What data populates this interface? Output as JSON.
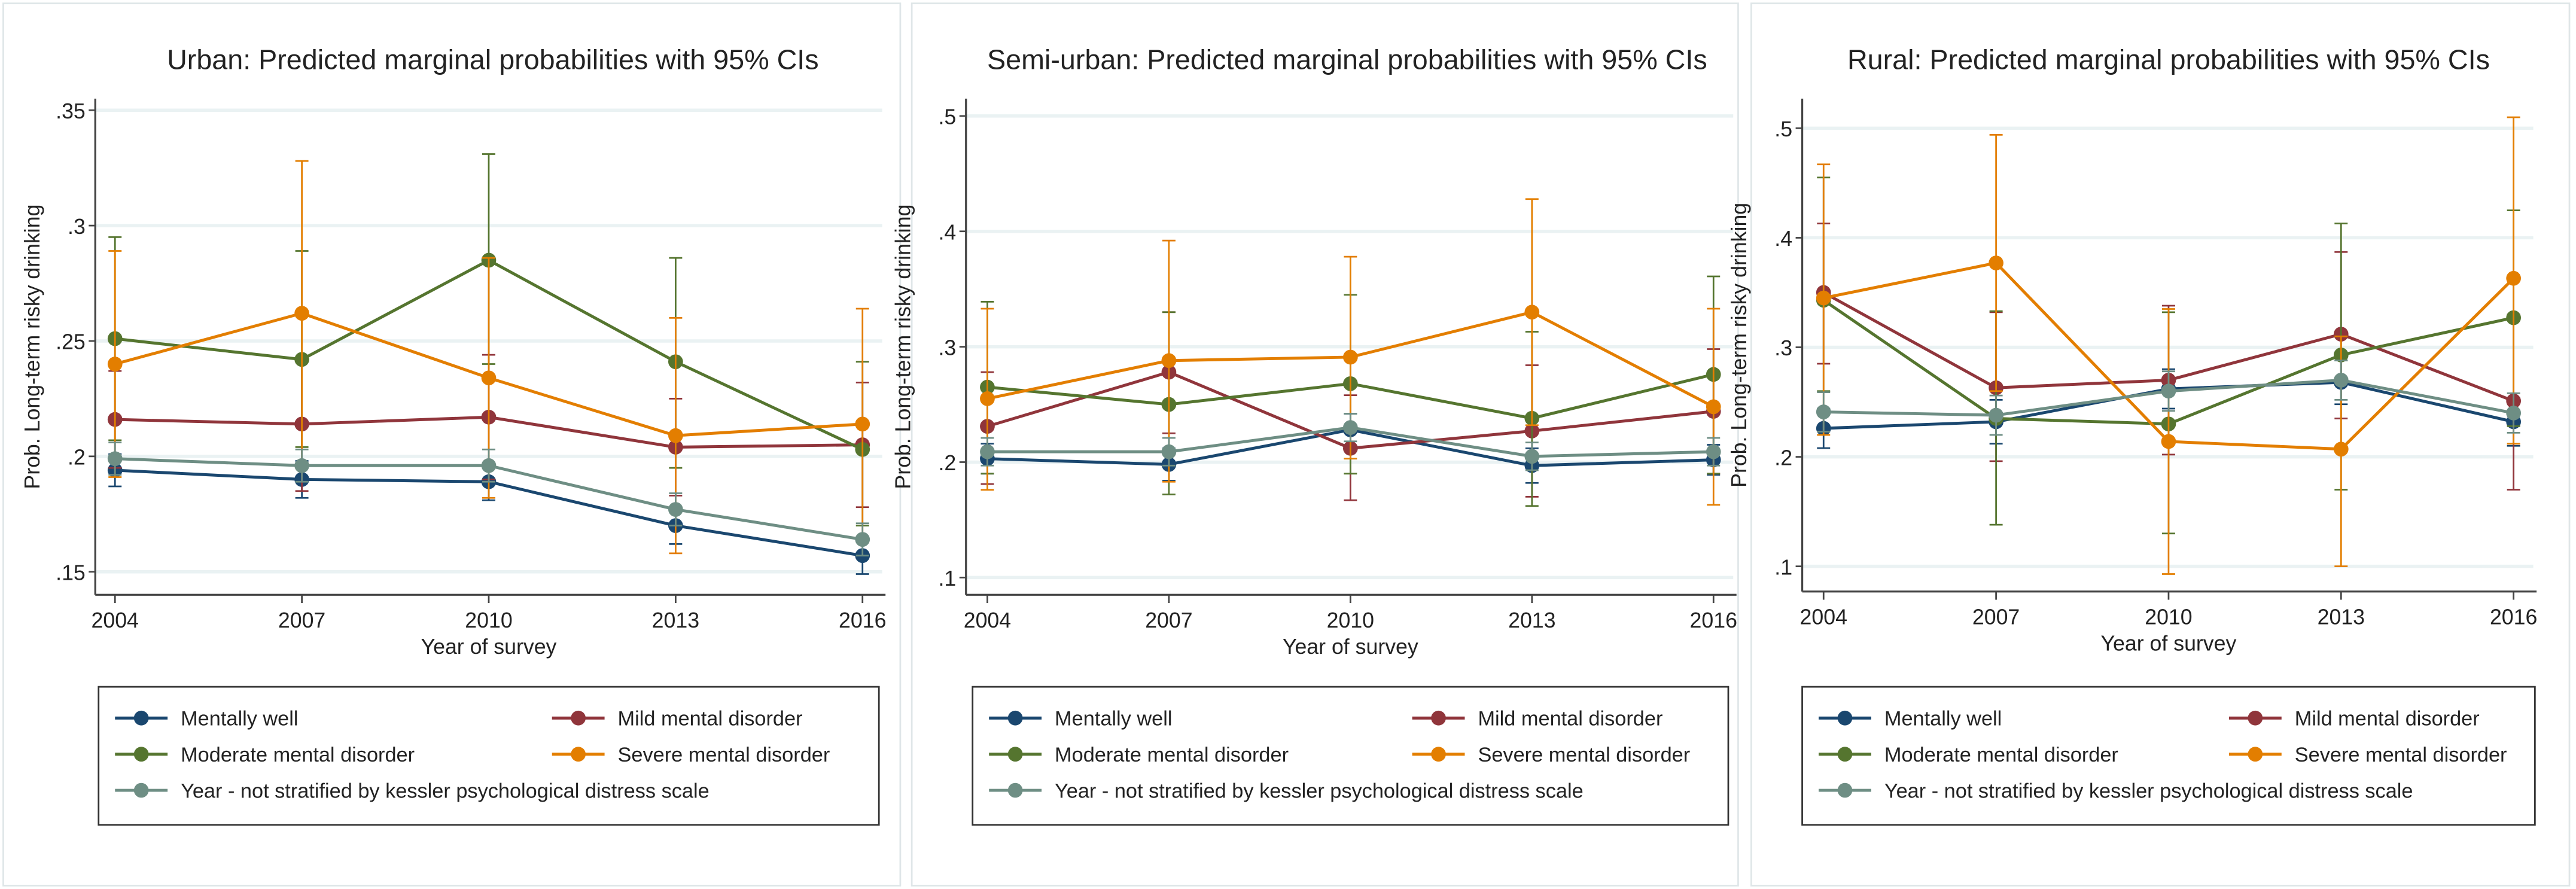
{
  "colors": {
    "well": "#1a476f",
    "mild": "#90353b",
    "moderate": "#55752f",
    "severe": "#e37e00",
    "ns": "#6e8e84",
    "grid": "#eaf2f3",
    "axis": "#444"
  },
  "legend": [
    {
      "key": "well",
      "label": "Mentally well"
    },
    {
      "key": "mild",
      "label": "Mild mental disorder"
    },
    {
      "key": "moderate",
      "label": "Moderate mental disorder"
    },
    {
      "key": "severe",
      "label": "Severe mental disorder"
    },
    {
      "key": "ns",
      "label": "Year - not stratified by kessler psychological distress scale"
    }
  ],
  "chart_data": [
    {
      "type": "line",
      "title": "Urban: Predicted marginal probabilities with 95% CIs",
      "xlabel": "Year of survey",
      "ylabel": "Prob. Long-term risky drinking",
      "x": [
        2004,
        2007,
        2010,
        2013,
        2016
      ],
      "x_ticks": [
        "2004",
        "2007",
        "2010",
        "2013",
        "2016"
      ],
      "y_ticks": [
        {
          "v": 0.15,
          "label": ".15"
        },
        {
          "v": 0.2,
          "label": ".2"
        },
        {
          "v": 0.25,
          "label": ".25"
        },
        {
          "v": 0.3,
          "label": ".3"
        },
        {
          "v": 0.35,
          "label": ".35"
        }
      ],
      "ylim": [
        0.14,
        0.355
      ],
      "grid": true,
      "legend_position": "bottom",
      "series": [
        {
          "key": "well",
          "name": "Mentally well",
          "values": [
            0.194,
            0.19,
            0.189,
            0.17,
            0.157
          ],
          "ci_low": [
            0.187,
            0.182,
            0.181,
            0.162,
            0.149
          ],
          "ci_high": [
            0.201,
            0.198,
            0.197,
            0.178,
            0.165
          ]
        },
        {
          "key": "mild",
          "name": "Mild mental disorder",
          "values": [
            0.216,
            0.214,
            0.217,
            0.204,
            0.205
          ],
          "ci_low": [
            0.195,
            0.185,
            0.19,
            0.183,
            0.178
          ],
          "ci_high": [
            0.237,
            0.243,
            0.244,
            0.225,
            0.232
          ]
        },
        {
          "key": "moderate",
          "name": "Moderate mental disorder",
          "values": [
            0.251,
            0.242,
            0.285,
            0.241,
            0.203
          ],
          "ci_low": [
            0.207,
            0.204,
            0.24,
            0.195,
            0.17
          ],
          "ci_high": [
            0.295,
            0.289,
            0.331,
            0.286,
            0.241
          ]
        },
        {
          "key": "severe",
          "name": "Severe mental disorder",
          "values": [
            0.24,
            0.262,
            0.234,
            0.209,
            0.214
          ],
          "ci_low": [
            0.191,
            0.196,
            0.182,
            0.158,
            0.165
          ],
          "ci_high": [
            0.289,
            0.328,
            0.286,
            0.26,
            0.264
          ]
        },
        {
          "key": "ns",
          "name": "Year - not stratified by kessler psychological distress scale",
          "values": [
            0.199,
            0.196,
            0.196,
            0.177,
            0.164
          ],
          "ci_low": [
            0.192,
            0.189,
            0.189,
            0.17,
            0.157
          ],
          "ci_high": [
            0.206,
            0.203,
            0.203,
            0.184,
            0.171
          ]
        }
      ]
    },
    {
      "type": "line",
      "title": "Semi-urban: Predicted marginal probabilities with 95% CIs",
      "xlabel": "Year of survey",
      "ylabel": "Prob. Long-term risky drinking",
      "x": [
        2004,
        2007,
        2010,
        2013,
        2016
      ],
      "x_ticks": [
        "2004",
        "2007",
        "2010",
        "2013",
        "2016"
      ],
      "y_ticks": [
        {
          "v": 0.1,
          "label": ".1"
        },
        {
          "v": 0.2,
          "label": ".2"
        },
        {
          "v": 0.3,
          "label": ".3"
        },
        {
          "v": 0.4,
          "label": ".4"
        },
        {
          "v": 0.5,
          "label": ".5"
        }
      ],
      "ylim": [
        0.085,
        0.515
      ],
      "grid": true,
      "legend_position": "bottom",
      "series": [
        {
          "key": "well",
          "name": "Mentally well",
          "values": [
            0.203,
            0.198,
            0.228,
            0.197,
            0.202
          ],
          "ci_low": [
            0.19,
            0.184,
            0.214,
            0.182,
            0.189
          ],
          "ci_high": [
            0.216,
            0.212,
            0.242,
            0.212,
            0.215
          ]
        },
        {
          "key": "mild",
          "name": "Mild mental disorder",
          "values": [
            0.231,
            0.278,
            0.212,
            0.227,
            0.244
          ],
          "ci_low": [
            0.181,
            0.225,
            0.167,
            0.17,
            0.19
          ],
          "ci_high": [
            0.278,
            0.33,
            0.258,
            0.284,
            0.298
          ]
        },
        {
          "key": "moderate",
          "name": "Moderate mental disorder",
          "values": [
            0.265,
            0.25,
            0.268,
            0.238,
            0.276
          ],
          "ci_low": [
            0.19,
            0.172,
            0.19,
            0.162,
            0.19
          ],
          "ci_high": [
            0.339,
            0.33,
            0.345,
            0.313,
            0.361
          ]
        },
        {
          "key": "severe",
          "name": "Severe mental disorder",
          "values": [
            0.255,
            0.288,
            0.291,
            0.33,
            0.248
          ],
          "ci_low": [
            0.176,
            0.183,
            0.203,
            0.232,
            0.163
          ],
          "ci_high": [
            0.333,
            0.392,
            0.378,
            0.428,
            0.333
          ]
        },
        {
          "key": "ns",
          "name": "Year - not stratified by kessler psychological distress scale",
          "values": [
            0.209,
            0.209,
            0.23,
            0.205,
            0.209
          ],
          "ci_low": [
            0.197,
            0.197,
            0.218,
            0.193,
            0.197
          ],
          "ci_high": [
            0.221,
            0.221,
            0.242,
            0.217,
            0.221
          ]
        }
      ]
    },
    {
      "type": "line",
      "title": "Rural: Predicted marginal probabilities with 95% CIs",
      "xlabel": "Year of survey",
      "ylabel": "Prob. Long-term risky drinking",
      "x": [
        2004,
        2007,
        2010,
        2013,
        2016
      ],
      "x_ticks": [
        "2004",
        "2007",
        "2010",
        "2013",
        "2016"
      ],
      "y_ticks": [
        {
          "v": 0.1,
          "label": ".1"
        },
        {
          "v": 0.2,
          "label": ".2"
        },
        {
          "v": 0.3,
          "label": ".3"
        },
        {
          "v": 0.4,
          "label": ".4"
        },
        {
          "v": 0.5,
          "label": ".5"
        }
      ],
      "ylim": [
        0.077,
        0.527
      ],
      "grid": true,
      "legend_position": "bottom",
      "series": [
        {
          "key": "well",
          "name": "Mentally well",
          "values": [
            0.226,
            0.232,
            0.262,
            0.268,
            0.232
          ],
          "ci_low": [
            0.208,
            0.212,
            0.244,
            0.248,
            0.21
          ],
          "ci_high": [
            0.244,
            0.252,
            0.28,
            0.288,
            0.254
          ]
        },
        {
          "key": "mild",
          "name": "Mild mental disorder",
          "values": [
            0.35,
            0.263,
            0.27,
            0.312,
            0.251
          ],
          "ci_low": [
            0.285,
            0.196,
            0.202,
            0.235,
            0.17
          ],
          "ci_high": [
            0.413,
            0.332,
            0.338,
            0.387,
            0.33
          ]
        },
        {
          "key": "moderate",
          "name": "Moderate mental disorder",
          "values": [
            0.343,
            0.235,
            0.23,
            0.293,
            0.327
          ],
          "ci_low": [
            0.26,
            0.138,
            0.13,
            0.17,
            0.228
          ],
          "ci_high": [
            0.455,
            0.333,
            0.332,
            0.413,
            0.425
          ]
        },
        {
          "key": "severe",
          "name": "Severe mental disorder",
          "values": [
            0.345,
            0.377,
            0.214,
            0.207,
            0.363
          ],
          "ci_low": [
            0.22,
            0.26,
            0.093,
            0.1,
            0.212
          ],
          "ci_high": [
            0.467,
            0.494,
            0.335,
            0.31,
            0.51
          ]
        },
        {
          "key": "ns",
          "name": "Year - not stratified by kessler psychological distress scale",
          "values": [
            0.241,
            0.238,
            0.26,
            0.27,
            0.24
          ],
          "ci_low": [
            0.223,
            0.22,
            0.242,
            0.252,
            0.222
          ],
          "ci_high": [
            0.259,
            0.256,
            0.278,
            0.288,
            0.258
          ]
        }
      ]
    }
  ]
}
